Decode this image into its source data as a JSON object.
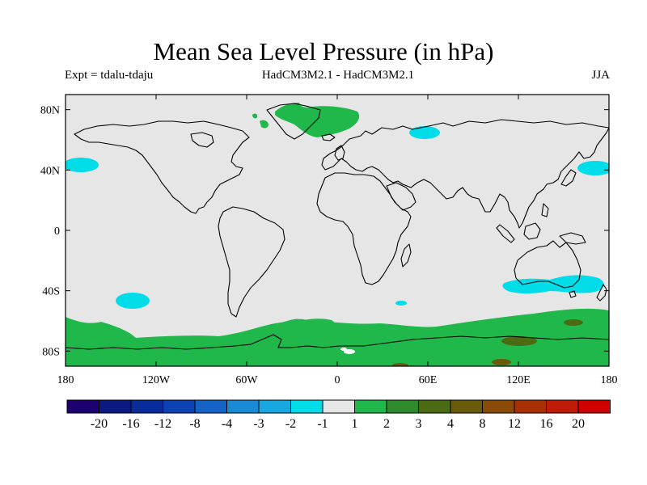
{
  "title": "Mean Sea Level Pressure (in hPa)",
  "subtitle_left": "Expt = tdalu-tdaju",
  "subtitle_center": "HadCM3M2.1 - HadCM3M2.1",
  "subtitle_right": "JJA",
  "map": {
    "lon_range": [
      -180,
      180
    ],
    "lat_range": [
      -90,
      90
    ],
    "xticks": [
      {
        "v": -180,
        "label": "180"
      },
      {
        "v": -120,
        "label": "120W"
      },
      {
        "v": -60,
        "label": "60W"
      },
      {
        "v": 0,
        "label": "0"
      },
      {
        "v": 60,
        "label": "60E"
      },
      {
        "v": 120,
        "label": "120E"
      },
      {
        "v": 180,
        "label": "180"
      }
    ],
    "yticks": [
      {
        "v": 80,
        "label": "80N"
      },
      {
        "v": 40,
        "label": "40N"
      },
      {
        "v": 0,
        "label": "0"
      },
      {
        "v": -40,
        "label": "40S"
      },
      {
        "v": -80,
        "label": "80S"
      }
    ],
    "background_color": "#e6e6e6",
    "coastline_color": "#000000"
  },
  "colorbar": {
    "colors": [
      "#1c0070",
      "#0b1a80",
      "#082c9c",
      "#0c42b4",
      "#1464c8",
      "#1a8ad6",
      "#18a8e0",
      "#00dce8",
      "#e6e6e6",
      "#20b84a",
      "#2e8a2a",
      "#4a6a14",
      "#6a5a0c",
      "#8a4a08",
      "#a83004",
      "#c01a08",
      "#d00000"
    ],
    "labels": [
      "-20",
      "-16",
      "-12",
      "-8",
      "-4",
      "-3",
      "-2",
      "-1",
      "1",
      "2",
      "3",
      "4",
      "8",
      "12",
      "16",
      "20"
    ]
  },
  "anomaly_areas": [
    {
      "region": "Greenland",
      "level": "2",
      "color": "#20b84a"
    },
    {
      "region": "Southern Ocean",
      "level": "2",
      "color": "#20b84a"
    },
    {
      "region": "Antarctica interior",
      "level": "3",
      "color": "#4a6a14"
    },
    {
      "region": "North Pacific",
      "level": "-1",
      "color": "#00dce8"
    },
    {
      "region": "South Pacific",
      "level": "-1",
      "color": "#00dce8"
    },
    {
      "region": "Southern Australia",
      "level": "-1",
      "color": "#00dce8"
    },
    {
      "region": "Barents Sea",
      "level": "-1",
      "color": "#00dce8"
    },
    {
      "region": "Northwest Pacific",
      "level": "-1",
      "color": "#00dce8"
    }
  ]
}
